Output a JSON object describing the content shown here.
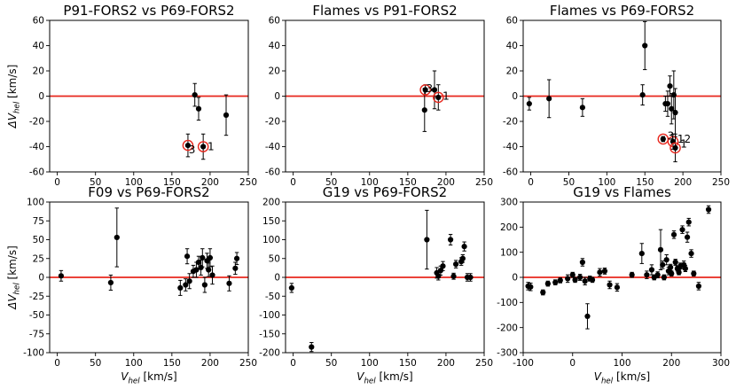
{
  "chart_data": [
    {
      "type": "scatter",
      "title": "P91-FORS2 vs P69-FORS2",
      "xlabel": "",
      "ylabel": "ΔV_hel [km/s]",
      "xlim": [
        -10,
        250
      ],
      "ylim": [
        -60,
        60
      ],
      "xticks": [
        0,
        50,
        100,
        150,
        200,
        250
      ],
      "yticks": [
        -60,
        -40,
        -20,
        0,
        20,
        40,
        60
      ],
      "reference_line": 0,
      "points": [
        {
          "x": 180,
          "y": 1,
          "err": 9
        },
        {
          "x": 185,
          "y": -10,
          "err": 9
        },
        {
          "x": 221,
          "y": -15,
          "err": 16
        },
        {
          "x": 171,
          "y": -39,
          "err": 9,
          "ring": true
        },
        {
          "x": 191,
          "y": -40,
          "err": 10,
          "ring": true
        }
      ],
      "annotations": [
        {
          "text": "3",
          "x": 172,
          "y": -39,
          "dx": 0,
          "dy": 5
        },
        {
          "text": "1",
          "x": 192,
          "y": -40,
          "dx": 4,
          "dy": 0
        }
      ]
    },
    {
      "type": "scatter",
      "title": "Flames vs P91-FORS2",
      "xlabel": "",
      "ylabel": "",
      "xlim": [
        -10,
        250
      ],
      "ylim": [
        -60,
        60
      ],
      "xticks": [
        0,
        50,
        100,
        150,
        200,
        250
      ],
      "yticks": [
        -60,
        -40,
        -20,
        0,
        20,
        40,
        60
      ],
      "reference_line": 0,
      "points": [
        {
          "x": 172,
          "y": -11,
          "err": 17
        },
        {
          "x": 185,
          "y": 5,
          "err": 15
        },
        {
          "x": 173,
          "y": 5,
          "err": 4,
          "ring": true
        },
        {
          "x": 190,
          "y": -1,
          "err": 10,
          "ring": true
        }
      ],
      "annotations": [
        {
          "text": "3",
          "x": 174,
          "y": 6,
          "dx": 0,
          "dy": 0
        },
        {
          "text": "1",
          "x": 191,
          "y": 0,
          "dx": 4,
          "dy": 0
        }
      ]
    },
    {
      "type": "scatter",
      "title": "Flames vs P69-FORS2",
      "xlabel": "",
      "ylabel": "",
      "xlim": [
        -10,
        250
      ],
      "ylim": [
        -60,
        60
      ],
      "xticks": [
        0,
        50,
        100,
        150,
        200,
        250
      ],
      "yticks": [
        -60,
        -40,
        -20,
        0,
        20,
        40,
        60
      ],
      "reference_line": 0,
      "points": [
        {
          "x": -2,
          "y": -6,
          "err": 5
        },
        {
          "x": 24,
          "y": -2,
          "err": 15
        },
        {
          "x": 68,
          "y": -9,
          "err": 7
        },
        {
          "x": 147,
          "y": 1,
          "err": 8
        },
        {
          "x": 150,
          "y": 40,
          "err": 19
        },
        {
          "x": 177,
          "y": -6,
          "err": 6
        },
        {
          "x": 180,
          "y": -6,
          "err": 10
        },
        {
          "x": 183,
          "y": 8,
          "err": 8
        },
        {
          "x": 185,
          "y": -10,
          "err": 12
        },
        {
          "x": 188,
          "y": 1,
          "err": 19
        },
        {
          "x": 190,
          "y": -13,
          "err": 19
        },
        {
          "x": 174,
          "y": -34,
          "err": 2,
          "ring": true
        },
        {
          "x": 187,
          "y": -36,
          "err": 6,
          "ring": true
        },
        {
          "x": 190,
          "y": -41,
          "err": 11,
          "ring": true
        }
      ],
      "annotations": [
        {
          "text": "3",
          "x": 175,
          "y": -33,
          "dx": 4,
          "dy": -2
        },
        {
          "text": "12",
          "x": 188,
          "y": -34,
          "dx": 4,
          "dy": 0
        },
        {
          "text": "1",
          "x": 192,
          "y": -38,
          "dx": 4,
          "dy": 0
        }
      ]
    },
    {
      "type": "scatter",
      "title": "F09 vs P69-FORS2",
      "xlabel": "V_hel [km/s]",
      "ylabel": "ΔV_hel [km/s]",
      "xlim": [
        -10,
        250
      ],
      "ylim": [
        -100,
        100
      ],
      "xticks": [
        0,
        50,
        100,
        150,
        200,
        250
      ],
      "yticks": [
        -100,
        -75,
        -50,
        -25,
        0,
        25,
        50,
        75,
        100
      ],
      "reference_line": 0,
      "points": [
        {
          "x": 5,
          "y": 2,
          "err": 7
        },
        {
          "x": 70,
          "y": -7,
          "err": 10
        },
        {
          "x": 78,
          "y": 53,
          "err": 39
        },
        {
          "x": 161,
          "y": -14,
          "err": 10
        },
        {
          "x": 168,
          "y": -10,
          "err": 8
        },
        {
          "x": 170,
          "y": 28,
          "err": 10
        },
        {
          "x": 173,
          "y": -5,
          "err": 10
        },
        {
          "x": 178,
          "y": 8,
          "err": 8
        },
        {
          "x": 182,
          "y": 10,
          "err": 10
        },
        {
          "x": 185,
          "y": 20,
          "err": 8
        },
        {
          "x": 188,
          "y": 13,
          "err": 10
        },
        {
          "x": 190,
          "y": 26,
          "err": 12
        },
        {
          "x": 193,
          "y": -10,
          "err": 10
        },
        {
          "x": 196,
          "y": 22,
          "err": 10
        },
        {
          "x": 198,
          "y": 10,
          "err": 9
        },
        {
          "x": 200,
          "y": 26,
          "err": 12
        },
        {
          "x": 203,
          "y": 3,
          "err": 12
        },
        {
          "x": 225,
          "y": -8,
          "err": 10
        },
        {
          "x": 233,
          "y": 12,
          "err": 8
        },
        {
          "x": 235,
          "y": 25,
          "err": 8
        }
      ],
      "annotations": []
    },
    {
      "type": "scatter",
      "title": "G19 vs P69-FORS2",
      "xlabel": "V_hel [km/s]",
      "ylabel": "",
      "xlim": [
        -10,
        250
      ],
      "ylim": [
        -200,
        200
      ],
      "xticks": [
        0,
        50,
        100,
        150,
        200,
        250
      ],
      "yticks": [
        -200,
        -150,
        -100,
        -50,
        0,
        50,
        100,
        150,
        200
      ],
      "reference_line": 0,
      "points": [
        {
          "x": -2,
          "y": -28,
          "err": 12
        },
        {
          "x": 24,
          "y": -185,
          "err": 12
        },
        {
          "x": 175,
          "y": 100,
          "err": 78
        },
        {
          "x": 188,
          "y": 12,
          "err": 14
        },
        {
          "x": 190,
          "y": 3,
          "err": 10
        },
        {
          "x": 193,
          "y": 18,
          "err": 12
        },
        {
          "x": 196,
          "y": 30,
          "err": 12
        },
        {
          "x": 206,
          "y": 100,
          "err": 14
        },
        {
          "x": 210,
          "y": 3,
          "err": 8
        },
        {
          "x": 213,
          "y": 35,
          "err": 10
        },
        {
          "x": 220,
          "y": 42,
          "err": 10
        },
        {
          "x": 222,
          "y": 50,
          "err": 10
        },
        {
          "x": 224,
          "y": 82,
          "err": 12
        },
        {
          "x": 228,
          "y": 0,
          "err": 10
        },
        {
          "x": 232,
          "y": 0,
          "err": 10
        }
      ],
      "annotations": []
    },
    {
      "type": "scatter",
      "title": "G19 vs Flames",
      "xlabel": "V_hel [km/s]",
      "ylabel": "",
      "xlim": [
        -100,
        300
      ],
      "ylim": [
        -300,
        300
      ],
      "xticks": [
        -100,
        0,
        100,
        200,
        300
      ],
      "yticks": [
        -300,
        -200,
        -100,
        0,
        100,
        200,
        300
      ],
      "reference_line": 0,
      "points": [
        {
          "x": -90,
          "y": -35,
          "err": 15
        },
        {
          "x": -85,
          "y": -38,
          "err": 15
        },
        {
          "x": -60,
          "y": -60,
          "err": 10
        },
        {
          "x": -50,
          "y": -25,
          "err": 10
        },
        {
          "x": -35,
          "y": -20,
          "err": 10
        },
        {
          "x": -25,
          "y": -12,
          "err": 10
        },
        {
          "x": -10,
          "y": -5,
          "err": 15
        },
        {
          "x": 0,
          "y": 10,
          "err": 10
        },
        {
          "x": 5,
          "y": -10,
          "err": 10
        },
        {
          "x": 15,
          "y": 0,
          "err": 12
        },
        {
          "x": 20,
          "y": 60,
          "err": 15
        },
        {
          "x": 25,
          "y": -15,
          "err": 15
        },
        {
          "x": 30,
          "y": -155,
          "err": 50
        },
        {
          "x": 35,
          "y": -5,
          "err": 10
        },
        {
          "x": 40,
          "y": -10,
          "err": 10
        },
        {
          "x": 55,
          "y": 20,
          "err": 15
        },
        {
          "x": 65,
          "y": 25,
          "err": 12
        },
        {
          "x": 75,
          "y": -30,
          "err": 15
        },
        {
          "x": 90,
          "y": -40,
          "err": 15
        },
        {
          "x": 120,
          "y": 10,
          "err": 10
        },
        {
          "x": 140,
          "y": 95,
          "err": 40
        },
        {
          "x": 150,
          "y": 10,
          "err": 15
        },
        {
          "x": 160,
          "y": 30,
          "err": 20
        },
        {
          "x": 165,
          "y": 0,
          "err": 10
        },
        {
          "x": 172,
          "y": 10,
          "err": 12
        },
        {
          "x": 178,
          "y": 110,
          "err": 80
        },
        {
          "x": 182,
          "y": 50,
          "err": 15
        },
        {
          "x": 185,
          "y": 0,
          "err": 10
        },
        {
          "x": 190,
          "y": 70,
          "err": 20
        },
        {
          "x": 194,
          "y": 25,
          "err": 15
        },
        {
          "x": 198,
          "y": 40,
          "err": 12
        },
        {
          "x": 200,
          "y": 15,
          "err": 10
        },
        {
          "x": 205,
          "y": 170,
          "err": 15
        },
        {
          "x": 208,
          "y": 60,
          "err": 12
        },
        {
          "x": 212,
          "y": 35,
          "err": 10
        },
        {
          "x": 215,
          "y": 20,
          "err": 10
        },
        {
          "x": 218,
          "y": 45,
          "err": 12
        },
        {
          "x": 222,
          "y": 190,
          "err": 15
        },
        {
          "x": 225,
          "y": 50,
          "err": 15
        },
        {
          "x": 228,
          "y": 35,
          "err": 12
        },
        {
          "x": 232,
          "y": 160,
          "err": 20
        },
        {
          "x": 235,
          "y": 220,
          "err": 15
        },
        {
          "x": 240,
          "y": 95,
          "err": 15
        },
        {
          "x": 245,
          "y": 15,
          "err": 10
        },
        {
          "x": 255,
          "y": -35,
          "err": 15
        },
        {
          "x": 275,
          "y": 270,
          "err": 15
        }
      ],
      "annotations": []
    }
  ]
}
